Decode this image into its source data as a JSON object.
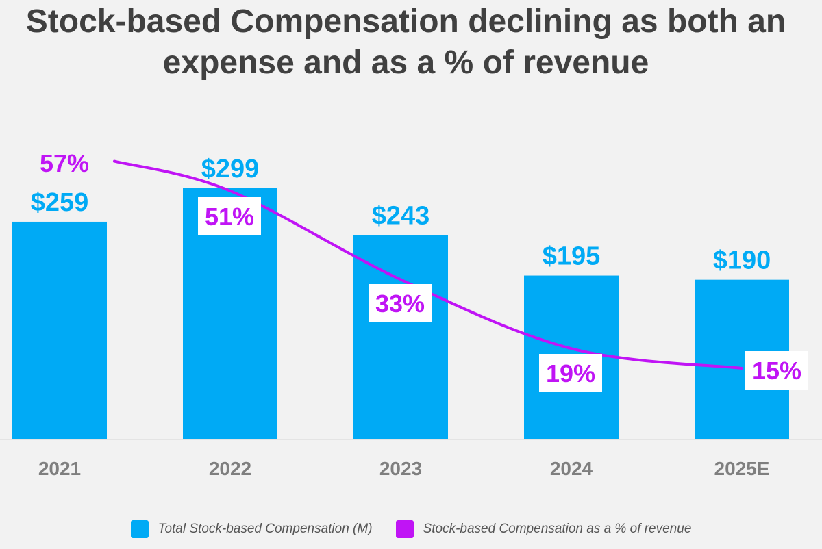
{
  "chart_data": {
    "type": "bar",
    "title": "Stock-based Compensation declining as both an expense and as a % of revenue",
    "categories": [
      "2021",
      "2022",
      "2023",
      "2024",
      "2025E"
    ],
    "series": [
      {
        "name": "Total Stock-based Compensation (M)",
        "type": "bar",
        "values": [
          259,
          299,
          243,
          195,
          190
        ],
        "labels": [
          "$259",
          "$299",
          "$243",
          "$195",
          "$190"
        ],
        "color": "#00aaf5"
      },
      {
        "name": "Stock-based Compensation as a % of revenue",
        "type": "line",
        "values": [
          57,
          51,
          33,
          19,
          15
        ],
        "labels": [
          "57%",
          "51%",
          "33%",
          "19%",
          "15%"
        ],
        "color": "#c014f5"
      }
    ],
    "xlabel": "",
    "ylabel": "",
    "grid": false,
    "legend_position": "bottom"
  },
  "colors": {
    "background": "#f2f2f2",
    "title": "#404040",
    "bar": "#00aaf5",
    "line": "#c014f5",
    "tick_label": "#7f7f7f"
  }
}
